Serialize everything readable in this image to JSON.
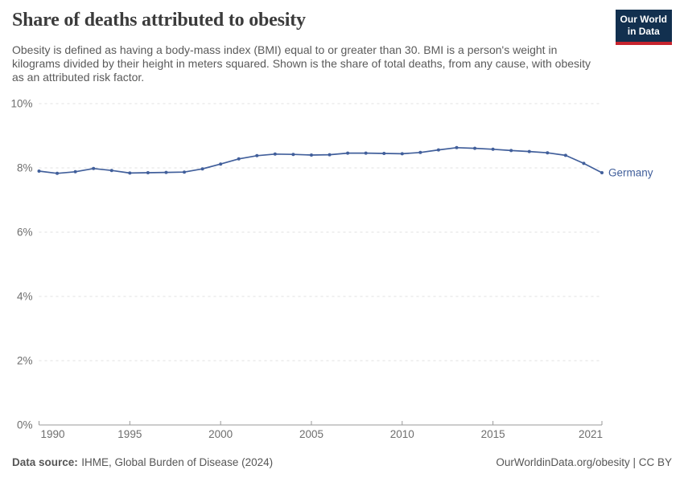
{
  "header": {
    "title": "Share of deaths attributed to obesity",
    "subtitle": "Obesity is defined as having a body-mass index (BMI) equal to or greater than 30. BMI is a person's weight in kilograms divided by their height in meters squared. Shown is the share of total deaths, from any cause, with obesity as an attributed risk factor.",
    "logo": {
      "line1": "Our World",
      "line2": "in Data",
      "bg_color": "#12304f",
      "accent_color": "#c7242e"
    }
  },
  "chart_data": {
    "type": "line",
    "title": "Share of deaths attributed to obesity",
    "xlabel": "",
    "ylabel": "",
    "xlim": [
      1990,
      2021
    ],
    "ylim": [
      0,
      10
    ],
    "x_ticks": [
      1990,
      1995,
      2000,
      2005,
      2010,
      2015,
      2021
    ],
    "y_ticks": [
      0,
      2,
      4,
      6,
      8,
      10
    ],
    "y_tick_suffix": "%",
    "grid": "horizontal-dashed",
    "legend_position": "end-of-line-label",
    "series": [
      {
        "name": "Germany",
        "color": "#415f9b",
        "x": [
          1990,
          1991,
          1992,
          1993,
          1994,
          1995,
          1996,
          1997,
          1998,
          1999,
          2000,
          2001,
          2002,
          2003,
          2004,
          2005,
          2006,
          2007,
          2008,
          2009,
          2010,
          2011,
          2012,
          2013,
          2014,
          2015,
          2016,
          2017,
          2018,
          2019,
          2020,
          2021
        ],
        "values": [
          7.9,
          7.83,
          7.88,
          7.98,
          7.92,
          7.84,
          7.85,
          7.86,
          7.87,
          7.97,
          8.12,
          8.28,
          8.38,
          8.43,
          8.42,
          8.4,
          8.41,
          8.46,
          8.46,
          8.45,
          8.44,
          8.48,
          8.56,
          8.63,
          8.61,
          8.58,
          8.54,
          8.51,
          8.47,
          8.39,
          8.14,
          7.85
        ]
      }
    ],
    "colors": {
      "grid": "#e0e0e0",
      "axis": "#999999",
      "tick_label": "#6e6e6e"
    }
  },
  "footer": {
    "source_label": "Data source:",
    "source_text": "IHME, Global Burden of Disease (2024)",
    "rights": "OurWorldinData.org/obesity | CC BY"
  }
}
